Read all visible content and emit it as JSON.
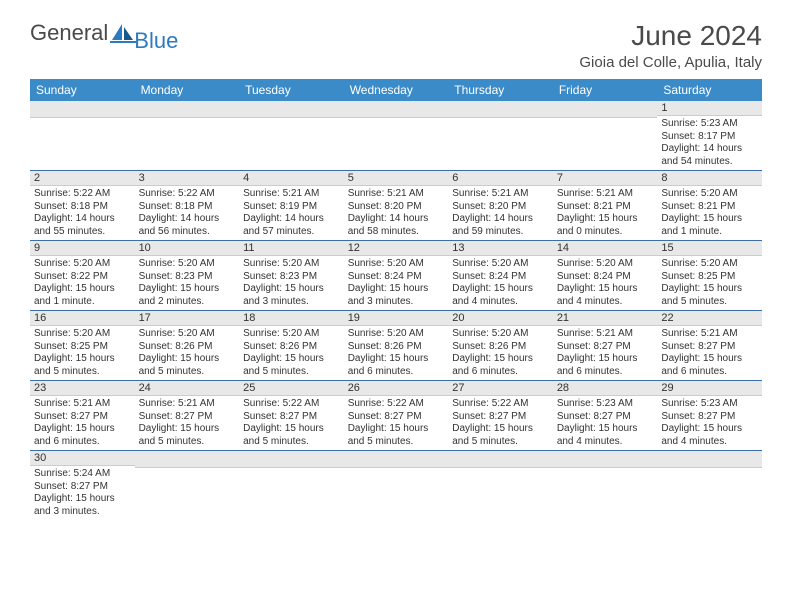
{
  "logo": {
    "part1": "General",
    "part2": "Blue"
  },
  "title": "June 2024",
  "location": "Gioia del Colle, Apulia, Italy",
  "colors": {
    "header_bg": "#3b8bc9",
    "header_text": "#ffffff",
    "daynum_bg": "#e8e8e8",
    "row_border": "#3b6ea5",
    "logo_blue": "#2b7bbf",
    "text_gray": "#4a4a4a"
  },
  "weekdays": [
    "Sunday",
    "Monday",
    "Tuesday",
    "Wednesday",
    "Thursday",
    "Friday",
    "Saturday"
  ],
  "weeks": [
    [
      null,
      null,
      null,
      null,
      null,
      null,
      {
        "n": "1",
        "sr": "Sunrise: 5:23 AM",
        "ss": "Sunset: 8:17 PM",
        "dl": "Daylight: 14 hours and 54 minutes."
      }
    ],
    [
      {
        "n": "2",
        "sr": "Sunrise: 5:22 AM",
        "ss": "Sunset: 8:18 PM",
        "dl": "Daylight: 14 hours and 55 minutes."
      },
      {
        "n": "3",
        "sr": "Sunrise: 5:22 AM",
        "ss": "Sunset: 8:18 PM",
        "dl": "Daylight: 14 hours and 56 minutes."
      },
      {
        "n": "4",
        "sr": "Sunrise: 5:21 AM",
        "ss": "Sunset: 8:19 PM",
        "dl": "Daylight: 14 hours and 57 minutes."
      },
      {
        "n": "5",
        "sr": "Sunrise: 5:21 AM",
        "ss": "Sunset: 8:20 PM",
        "dl": "Daylight: 14 hours and 58 minutes."
      },
      {
        "n": "6",
        "sr": "Sunrise: 5:21 AM",
        "ss": "Sunset: 8:20 PM",
        "dl": "Daylight: 14 hours and 59 minutes."
      },
      {
        "n": "7",
        "sr": "Sunrise: 5:21 AM",
        "ss": "Sunset: 8:21 PM",
        "dl": "Daylight: 15 hours and 0 minutes."
      },
      {
        "n": "8",
        "sr": "Sunrise: 5:20 AM",
        "ss": "Sunset: 8:21 PM",
        "dl": "Daylight: 15 hours and 1 minute."
      }
    ],
    [
      {
        "n": "9",
        "sr": "Sunrise: 5:20 AM",
        "ss": "Sunset: 8:22 PM",
        "dl": "Daylight: 15 hours and 1 minute."
      },
      {
        "n": "10",
        "sr": "Sunrise: 5:20 AM",
        "ss": "Sunset: 8:23 PM",
        "dl": "Daylight: 15 hours and 2 minutes."
      },
      {
        "n": "11",
        "sr": "Sunrise: 5:20 AM",
        "ss": "Sunset: 8:23 PM",
        "dl": "Daylight: 15 hours and 3 minutes."
      },
      {
        "n": "12",
        "sr": "Sunrise: 5:20 AM",
        "ss": "Sunset: 8:24 PM",
        "dl": "Daylight: 15 hours and 3 minutes."
      },
      {
        "n": "13",
        "sr": "Sunrise: 5:20 AM",
        "ss": "Sunset: 8:24 PM",
        "dl": "Daylight: 15 hours and 4 minutes."
      },
      {
        "n": "14",
        "sr": "Sunrise: 5:20 AM",
        "ss": "Sunset: 8:24 PM",
        "dl": "Daylight: 15 hours and 4 minutes."
      },
      {
        "n": "15",
        "sr": "Sunrise: 5:20 AM",
        "ss": "Sunset: 8:25 PM",
        "dl": "Daylight: 15 hours and 5 minutes."
      }
    ],
    [
      {
        "n": "16",
        "sr": "Sunrise: 5:20 AM",
        "ss": "Sunset: 8:25 PM",
        "dl": "Daylight: 15 hours and 5 minutes."
      },
      {
        "n": "17",
        "sr": "Sunrise: 5:20 AM",
        "ss": "Sunset: 8:26 PM",
        "dl": "Daylight: 15 hours and 5 minutes."
      },
      {
        "n": "18",
        "sr": "Sunrise: 5:20 AM",
        "ss": "Sunset: 8:26 PM",
        "dl": "Daylight: 15 hours and 5 minutes."
      },
      {
        "n": "19",
        "sr": "Sunrise: 5:20 AM",
        "ss": "Sunset: 8:26 PM",
        "dl": "Daylight: 15 hours and 6 minutes."
      },
      {
        "n": "20",
        "sr": "Sunrise: 5:20 AM",
        "ss": "Sunset: 8:26 PM",
        "dl": "Daylight: 15 hours and 6 minutes."
      },
      {
        "n": "21",
        "sr": "Sunrise: 5:21 AM",
        "ss": "Sunset: 8:27 PM",
        "dl": "Daylight: 15 hours and 6 minutes."
      },
      {
        "n": "22",
        "sr": "Sunrise: 5:21 AM",
        "ss": "Sunset: 8:27 PM",
        "dl": "Daylight: 15 hours and 6 minutes."
      }
    ],
    [
      {
        "n": "23",
        "sr": "Sunrise: 5:21 AM",
        "ss": "Sunset: 8:27 PM",
        "dl": "Daylight: 15 hours and 6 minutes."
      },
      {
        "n": "24",
        "sr": "Sunrise: 5:21 AM",
        "ss": "Sunset: 8:27 PM",
        "dl": "Daylight: 15 hours and 5 minutes."
      },
      {
        "n": "25",
        "sr": "Sunrise: 5:22 AM",
        "ss": "Sunset: 8:27 PM",
        "dl": "Daylight: 15 hours and 5 minutes."
      },
      {
        "n": "26",
        "sr": "Sunrise: 5:22 AM",
        "ss": "Sunset: 8:27 PM",
        "dl": "Daylight: 15 hours and 5 minutes."
      },
      {
        "n": "27",
        "sr": "Sunrise: 5:22 AM",
        "ss": "Sunset: 8:27 PM",
        "dl": "Daylight: 15 hours and 5 minutes."
      },
      {
        "n": "28",
        "sr": "Sunrise: 5:23 AM",
        "ss": "Sunset: 8:27 PM",
        "dl": "Daylight: 15 hours and 4 minutes."
      },
      {
        "n": "29",
        "sr": "Sunrise: 5:23 AM",
        "ss": "Sunset: 8:27 PM",
        "dl": "Daylight: 15 hours and 4 minutes."
      }
    ],
    [
      {
        "n": "30",
        "sr": "Sunrise: 5:24 AM",
        "ss": "Sunset: 8:27 PM",
        "dl": "Daylight: 15 hours and 3 minutes."
      },
      null,
      null,
      null,
      null,
      null,
      null
    ]
  ]
}
